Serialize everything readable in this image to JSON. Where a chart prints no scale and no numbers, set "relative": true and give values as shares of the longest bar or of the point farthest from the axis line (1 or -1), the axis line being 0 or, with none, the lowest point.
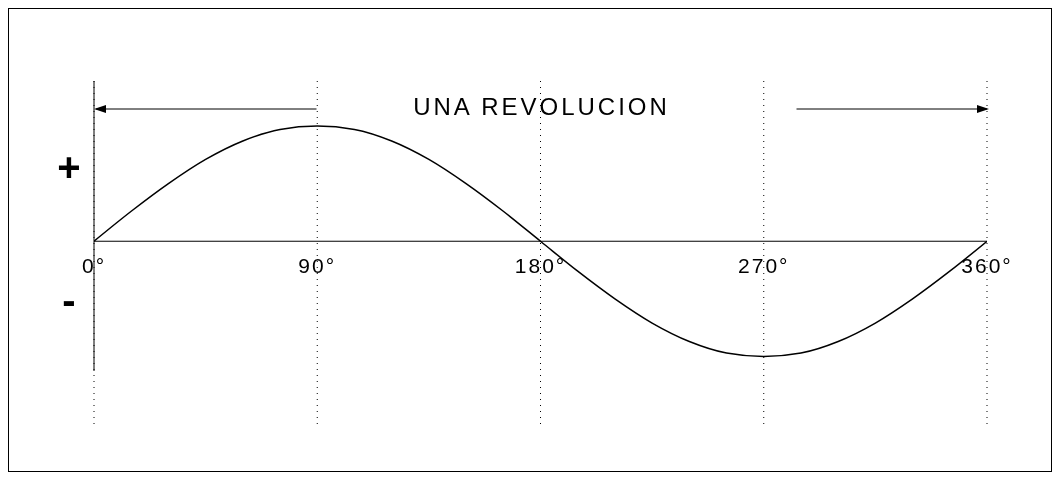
{
  "chart_data": {
    "type": "line",
    "title": "UNA REVOLUCION",
    "annotations": [
      "+",
      "-"
    ],
    "x": [
      0,
      15,
      30,
      45,
      60,
      75,
      90,
      105,
      120,
      135,
      150,
      165,
      180,
      195,
      210,
      225,
      240,
      255,
      270,
      285,
      300,
      315,
      330,
      345,
      360
    ],
    "series": [
      {
        "color": "#000000",
        "values": [
          0,
          0.26,
          0.5,
          0.71,
          0.87,
          0.97,
          1,
          0.97,
          0.87,
          0.71,
          0.5,
          0.26,
          0,
          -0.26,
          -0.5,
          -0.71,
          -0.87,
          -0.97,
          -1,
          -0.97,
          -0.87,
          -0.71,
          -0.5,
          -0.26,
          0
        ]
      }
    ],
    "relative": true,
    "xlim": [
      0,
      360
    ],
    "xticks": [
      {
        "value": 0,
        "label": "0°"
      },
      {
        "value": 90,
        "label": "90°"
      },
      {
        "value": 180,
        "label": "180°"
      },
      {
        "value": 270,
        "label": "270°"
      },
      {
        "value": 360,
        "label": "360°"
      }
    ],
    "grid": "x",
    "marker": "none",
    "line_style": "solid",
    "legend": false
  }
}
